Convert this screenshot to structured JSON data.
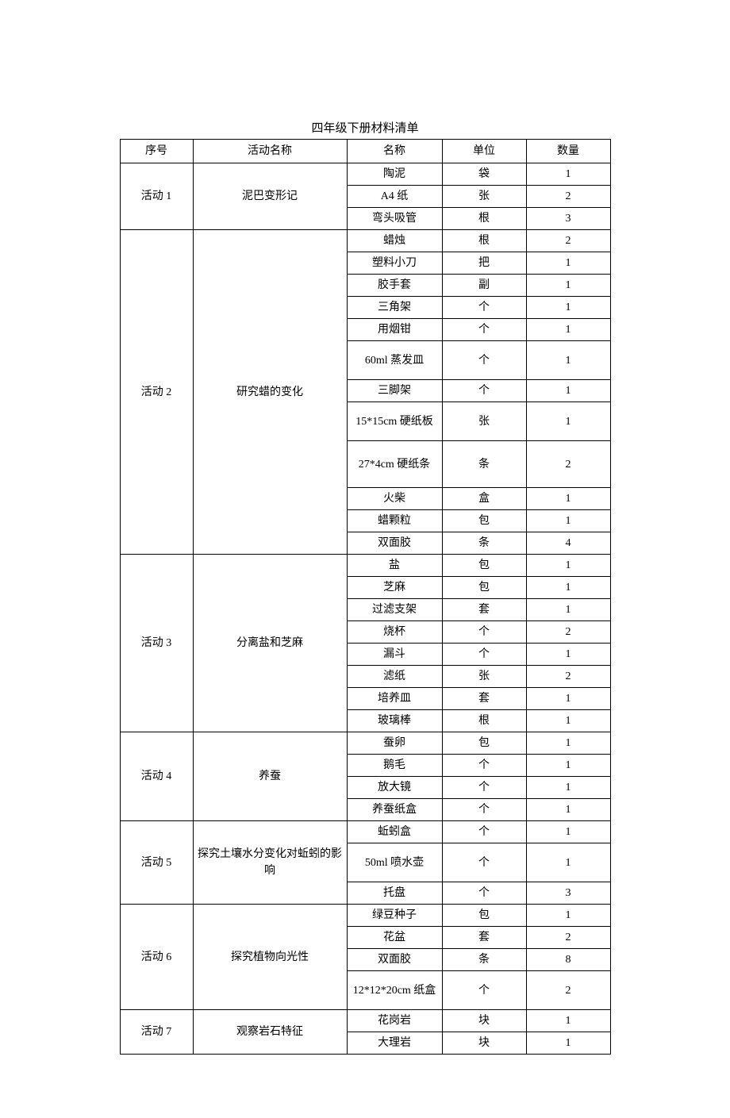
{
  "title": "四年级下册材料清单",
  "headers": {
    "seq": "序号",
    "activity": "活动名称",
    "name": "名称",
    "unit": "单位",
    "qty": "数量"
  },
  "activities": [
    {
      "seq": "活动 1",
      "name": "泥巴变形记",
      "items": [
        {
          "name": "陶泥",
          "unit": "袋",
          "qty": "1"
        },
        {
          "name": "A4 纸",
          "unit": "张",
          "qty": "2"
        },
        {
          "name": "弯头吸管",
          "unit": "根",
          "qty": "3"
        }
      ]
    },
    {
      "seq": "活动 2",
      "name": "研究蜡的变化",
      "items": [
        {
          "name": "蜡烛",
          "unit": "根",
          "qty": "2"
        },
        {
          "name": "塑料小刀",
          "unit": "把",
          "qty": "1"
        },
        {
          "name": "胶手套",
          "unit": "副",
          "qty": "1"
        },
        {
          "name": "三角架",
          "unit": "个",
          "qty": "1"
        },
        {
          "name": "用烟钳",
          "unit": "个",
          "qty": "1"
        },
        {
          "name": "60ml 蒸发皿",
          "unit": "个",
          "qty": "1",
          "tall": true
        },
        {
          "name": "三脚架",
          "unit": "个",
          "qty": "1"
        },
        {
          "name": "15*15cm 硬纸板",
          "unit": "张",
          "qty": "1",
          "tall": true
        },
        {
          "name": "27*4cm 硬纸条",
          "unit": "条",
          "qty": "2",
          "taller": true
        },
        {
          "name": "火柴",
          "unit": "盒",
          "qty": "1"
        },
        {
          "name": "蜡颗粒",
          "unit": "包",
          "qty": "1"
        },
        {
          "name": "双面胶",
          "unit": "条",
          "qty": "4"
        }
      ]
    },
    {
      "seq": "活动 3",
      "name": "分离盐和芝麻",
      "items": [
        {
          "name": "盐",
          "unit": "包",
          "qty": "1"
        },
        {
          "name": "芝麻",
          "unit": "包",
          "qty": "1"
        },
        {
          "name": "过滤支架",
          "unit": "套",
          "qty": "1"
        },
        {
          "name": "烧杯",
          "unit": "个",
          "qty": "2"
        },
        {
          "name": "漏斗",
          "unit": "个",
          "qty": "1"
        },
        {
          "name": "滤纸",
          "unit": "张",
          "qty": "2"
        },
        {
          "name": "培养皿",
          "unit": "套",
          "qty": "1"
        },
        {
          "name": "玻璃棒",
          "unit": "根",
          "qty": "1"
        }
      ]
    },
    {
      "seq": "活动 4",
      "name": "养蚕",
      "items": [
        {
          "name": "蚕卵",
          "unit": "包",
          "qty": "1"
        },
        {
          "name": "鹅毛",
          "unit": "个",
          "qty": "1"
        },
        {
          "name": "放大镜",
          "unit": "个",
          "qty": "1"
        },
        {
          "name": "养蚕纸盒",
          "unit": "个",
          "qty": "1"
        }
      ]
    },
    {
      "seq": "活动 5",
      "name": "探究土壤水分变化对蚯蚓的影响",
      "items": [
        {
          "name": "蚯蚓盒",
          "unit": "个",
          "qty": "1"
        },
        {
          "name": "50ml 喷水壶",
          "unit": "个",
          "qty": "1",
          "tall": true
        },
        {
          "name": "托盘",
          "unit": "个",
          "qty": "3"
        }
      ]
    },
    {
      "seq": "活动 6",
      "name": "探究植物向光性",
      "items": [
        {
          "name": "绿豆种子",
          "unit": "包",
          "qty": "1"
        },
        {
          "name": "花盆",
          "unit": "套",
          "qty": "2"
        },
        {
          "name": "双面胶",
          "unit": "条",
          "qty": "8"
        },
        {
          "name": "12*12*20cm 纸盒",
          "unit": "个",
          "qty": "2",
          "tall": true
        }
      ]
    },
    {
      "seq": "活动 7",
      "name": "观察岩石特征",
      "items": [
        {
          "name": "花岗岩",
          "unit": "块",
          "qty": "1"
        },
        {
          "name": "大理岩",
          "unit": "块",
          "qty": "1"
        }
      ]
    }
  ]
}
